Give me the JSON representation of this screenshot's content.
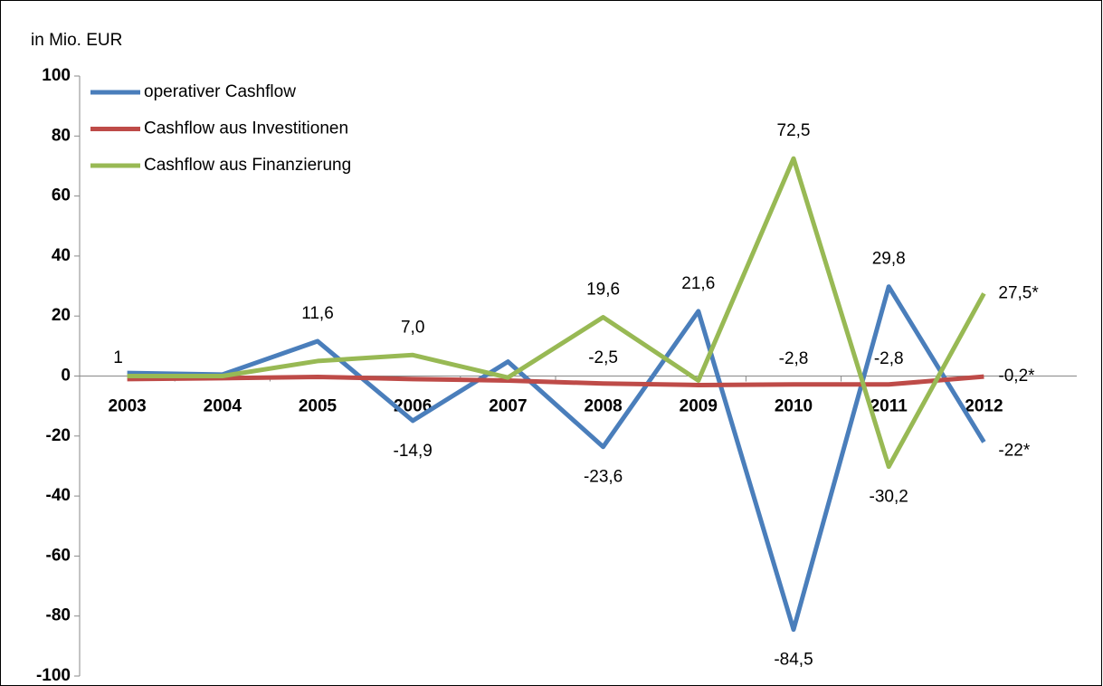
{
  "chart_data": {
    "type": "line",
    "title": "in Mio. EUR",
    "categories": [
      "2003",
      "2004",
      "2005",
      "2006",
      "2007",
      "2008",
      "2009",
      "2010",
      "2011",
      "2012"
    ],
    "ylim": [
      -100,
      100
    ],
    "yticks": [
      -100,
      -80,
      -60,
      -40,
      -20,
      0,
      20,
      40,
      60,
      80,
      100
    ],
    "grid": false,
    "legend": "upper left",
    "series": [
      {
        "name": "operativer Cashflow",
        "color": "#4a7ebb",
        "values": [
          1,
          0.5,
          11.6,
          -14.9,
          4.8,
          -23.6,
          21.6,
          -84.5,
          29.8,
          -22
        ],
        "value_labels": [
          "1",
          null,
          "11,6",
          "-14,9",
          null,
          "-23,6",
          "21,6",
          "-84,5",
          "29,8",
          "-22*"
        ],
        "value_label_colors": [
          null,
          null,
          null,
          null,
          null,
          null,
          null,
          null,
          null,
          "#ff0000"
        ]
      },
      {
        "name": "Cashflow aus Investitionen",
        "color": "#be4b48",
        "values": [
          -1,
          -0.7,
          -0.3,
          -1,
          -1.5,
          -2.5,
          -3,
          -2.8,
          -2.8,
          -0.2
        ],
        "value_labels": [
          null,
          null,
          null,
          null,
          null,
          "-2,5",
          null,
          "-2,8",
          "-2,8",
          "-0,2*"
        ],
        "value_label_colors": [
          null,
          null,
          null,
          null,
          null,
          null,
          null,
          null,
          null,
          "#ff0000"
        ]
      },
      {
        "name": "Cashflow aus Finanzierung",
        "color": "#98b954",
        "values": [
          0,
          0,
          5,
          7.0,
          -0.5,
          19.6,
          -1.5,
          72.5,
          -30.2,
          27.5
        ],
        "value_labels": [
          null,
          null,
          null,
          "7,0",
          null,
          "19,6",
          null,
          "72,5",
          "-30,2",
          "27,5*"
        ],
        "value_label_colors": [
          null,
          null,
          null,
          null,
          null,
          null,
          null,
          null,
          null,
          "#ff0000"
        ]
      }
    ]
  }
}
